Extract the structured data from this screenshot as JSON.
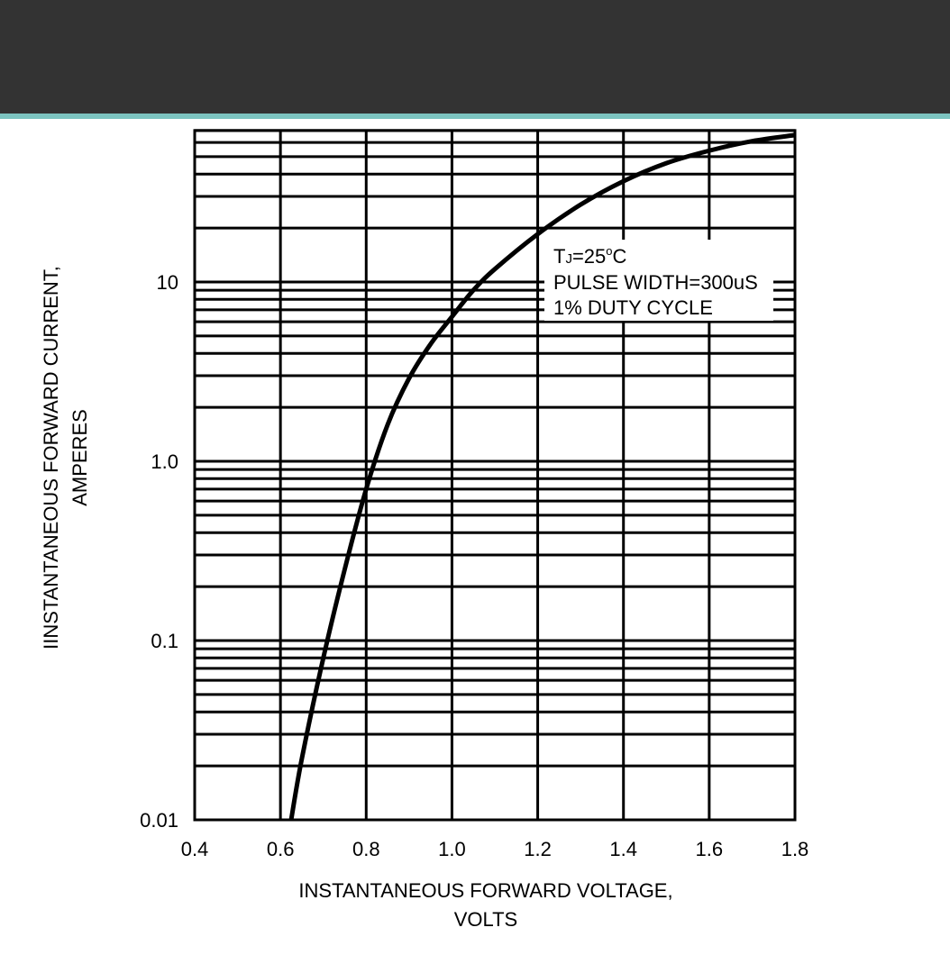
{
  "header": {
    "bar_color": "#333333",
    "accent_color": "#7cc4c0"
  },
  "chart_data": {
    "type": "line",
    "xlabel_lines": [
      "INSTANTANEOUS FORWARD VOLTAGE,",
      "VOLTS"
    ],
    "ylabel_lines": [
      "IINSTANTANEOUS FORWARD CURRENT,",
      "AMPERES"
    ],
    "xlim": [
      0.4,
      1.8
    ],
    "ylim": [
      0.01,
      70
    ],
    "yscale": "log",
    "grid": true,
    "x_ticks": [
      0.4,
      0.6,
      0.8,
      1.0,
      1.2,
      1.4,
      1.6,
      1.8
    ],
    "x_tick_labels": [
      "0.4",
      "0.6",
      "0.8",
      "1.0",
      "1.2",
      "1.4",
      "1.6",
      "1.8"
    ],
    "y_ticks": [
      0.01,
      0.1,
      1.0,
      10
    ],
    "y_tick_labels": [
      "0.01",
      "0.1",
      "1.0",
      "10"
    ],
    "series": [
      {
        "color": "#000000",
        "x": [
          0.625,
          0.65,
          0.7,
          0.75,
          0.8,
          0.85,
          0.9,
          0.95,
          1.0,
          1.05,
          1.1,
          1.2,
          1.3,
          1.4,
          1.5,
          1.6,
          1.7,
          1.8
        ],
        "y": [
          0.01,
          0.022,
          0.08,
          0.25,
          0.7,
          1.6,
          2.9,
          4.5,
          6.4,
          9.0,
          11.8,
          18.5,
          27.0,
          36.5,
          46.0,
          54.0,
          61.0,
          66.0
        ]
      }
    ],
    "annotation": {
      "tj_prefix": "T",
      "tj_subscript": "J",
      "tj_value": "=25",
      "tj_degree": "o",
      "tj_unit": "C",
      "line2": "PULSE WIDTH=300uS",
      "line3": "1% DUTY CYCLE",
      "placement": "upper-right"
    }
  }
}
